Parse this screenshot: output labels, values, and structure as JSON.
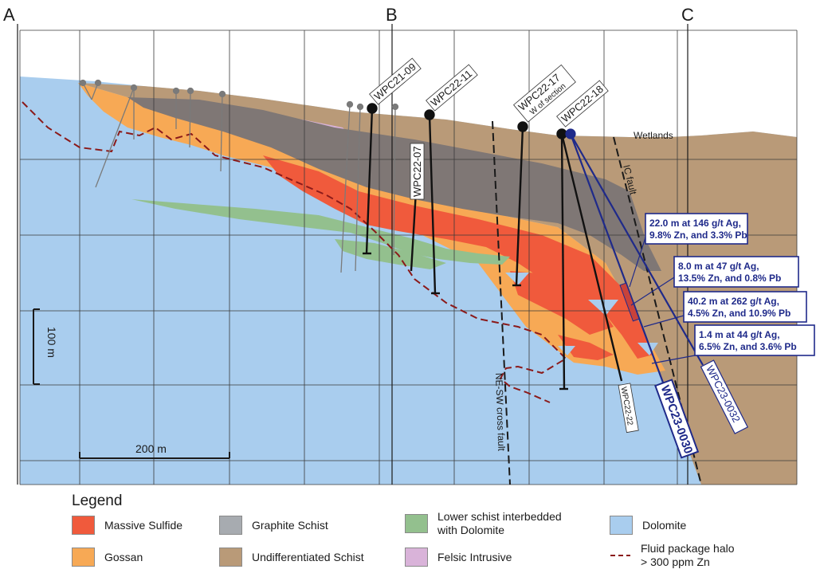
{
  "section_markers": [
    "A",
    "B",
    "C"
  ],
  "drillholes": [
    {
      "id": "WPC21-09",
      "sub": ""
    },
    {
      "id": "WPC22-11",
      "sub": ""
    },
    {
      "id": "WPC22-07",
      "sub": ""
    },
    {
      "id": "WPC22-17",
      "sub": "W of section"
    },
    {
      "id": "WPC22-18",
      "sub": ""
    },
    {
      "id": "WPC22-22",
      "sub": ""
    },
    {
      "id": "WPC23-0030",
      "sub": ""
    },
    {
      "id": "WPC23-0032",
      "sub": ""
    }
  ],
  "annotations": [
    {
      "line1": "22.0 m at 146 g/t Ag,",
      "line2": "9.8% Zn, and 3.3% Pb"
    },
    {
      "line1": "8.0 m at 47 g/t Ag,",
      "line2": "13.5% Zn, and 0.8% Pb"
    },
    {
      "line1": "40.2 m at 262 g/t Ag,",
      "line2": "4.5% Zn, and 10.9% Pb"
    },
    {
      "line1": "1.4 m at 44 g/t Ag,",
      "line2": "6.5% Zn, and 3.6% Pb"
    }
  ],
  "features": {
    "wetlands": "Wetlands",
    "ic_fault": "IC fault",
    "ne_sw_fault": "NE-SW cross fault"
  },
  "scale": {
    "vertical": "100 m",
    "horizontal": "200 m"
  },
  "legend": {
    "title": "Legend",
    "items": [
      {
        "label": "Massive Sulfide",
        "color": "#f05a3c"
      },
      {
        "label": "Graphite Schist",
        "color": "#a7abb0"
      },
      {
        "label": "Lower schist interbedded",
        "label2": "with Dolomite",
        "color": "#93c08e"
      },
      {
        "label": "Dolomite",
        "color": "#a9cdee"
      },
      {
        "label": "Gossan",
        "color": "#f7a955"
      },
      {
        "label": "Undifferentiated Schist",
        "color": "#b99a78"
      },
      {
        "label": "Felsic Intrusive",
        "color": "#d9b3d9"
      },
      {
        "label": "Fluid package halo",
        "label2": "> 300 ppm Zn",
        "color": "#8b1a1a"
      }
    ]
  }
}
